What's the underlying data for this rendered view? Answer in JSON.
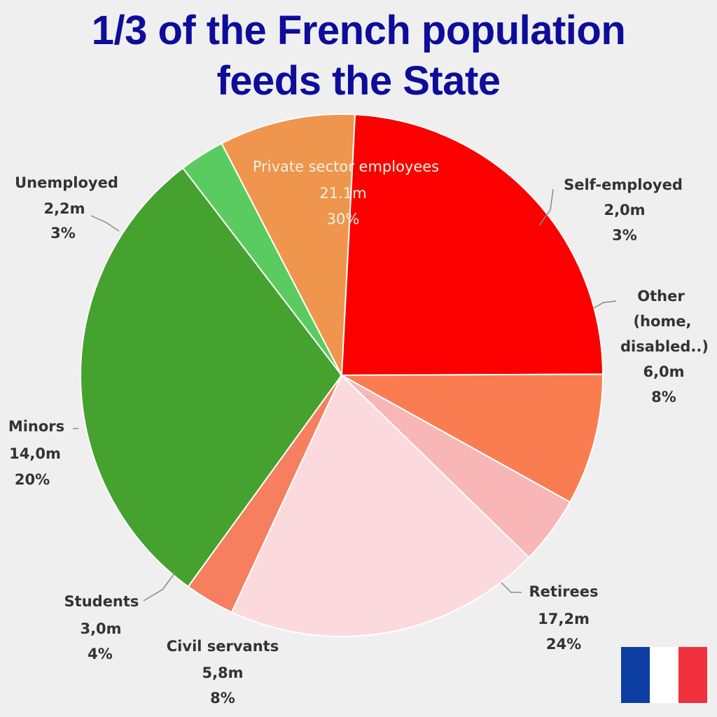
{
  "title": {
    "line1": "1/3 of the French population",
    "line2": "feeds the State"
  },
  "chart_data": {
    "type": "pie",
    "title": "1/3 of the French population feeds the State",
    "unit": "m",
    "slices": [
      {
        "name": "Private sector employees",
        "value": 21.1,
        "value_label": "21.1m",
        "percent_label": "30%",
        "color": "#45a22f"
      },
      {
        "name": "Self-employed",
        "value": 2.0,
        "value_label": "2,0m",
        "percent_label": "3%",
        "color": "#5acc5f"
      },
      {
        "name": "Other (home, disabled..)",
        "value": 6.0,
        "value_label": "6,0m",
        "percent_label": "8%",
        "color": "#f0954d"
      },
      {
        "name": "Retirees",
        "value": 17.2,
        "value_label": "17,2m",
        "percent_label": "24%",
        "color": "#fc0000"
      },
      {
        "name": "Civil servants",
        "value": 5.8,
        "value_label": "5,8m",
        "percent_label": "8%",
        "color": "#fa7d52"
      },
      {
        "name": "Students",
        "value": 3.0,
        "value_label": "3,0m",
        "percent_label": "4%",
        "color": "#f8b6b7"
      },
      {
        "name": "Minors",
        "value": 14.0,
        "value_label": "14,0m",
        "percent_label": "20%",
        "color": "#fcd9dc"
      },
      {
        "name": "Unemployed",
        "value": 2.2,
        "value_label": "2,2m",
        "percent_label": "3%",
        "color": "#f57f5e"
      }
    ]
  },
  "labels": {
    "private": {
      "name": "Private sector employees",
      "value": "21.1m",
      "percent": "30%"
    },
    "self_employed": {
      "name": "Self-employed",
      "value": "2,0m",
      "percent": "3%"
    },
    "other": {
      "line1": "Other",
      "line2": "(home,",
      "line3": "disabled..)",
      "value": "6,0m",
      "percent": "8%"
    },
    "retirees": {
      "name": "Retirees",
      "value": "17,2m",
      "percent": "24%"
    },
    "civil": {
      "name": "Civil servants",
      "value": "5,8m",
      "percent": "8%"
    },
    "students": {
      "name": "Students",
      "value": "3,0m",
      "percent": "4%"
    },
    "minors": {
      "name": "Minors",
      "value": "14,0m",
      "percent": "20%"
    },
    "unemployed": {
      "name": "Unemployed",
      "value": "2,2m",
      "percent": "3%"
    }
  },
  "flag": {
    "colors": [
      "#0b3ea0",
      "#ffffff",
      "#f0303c"
    ]
  }
}
